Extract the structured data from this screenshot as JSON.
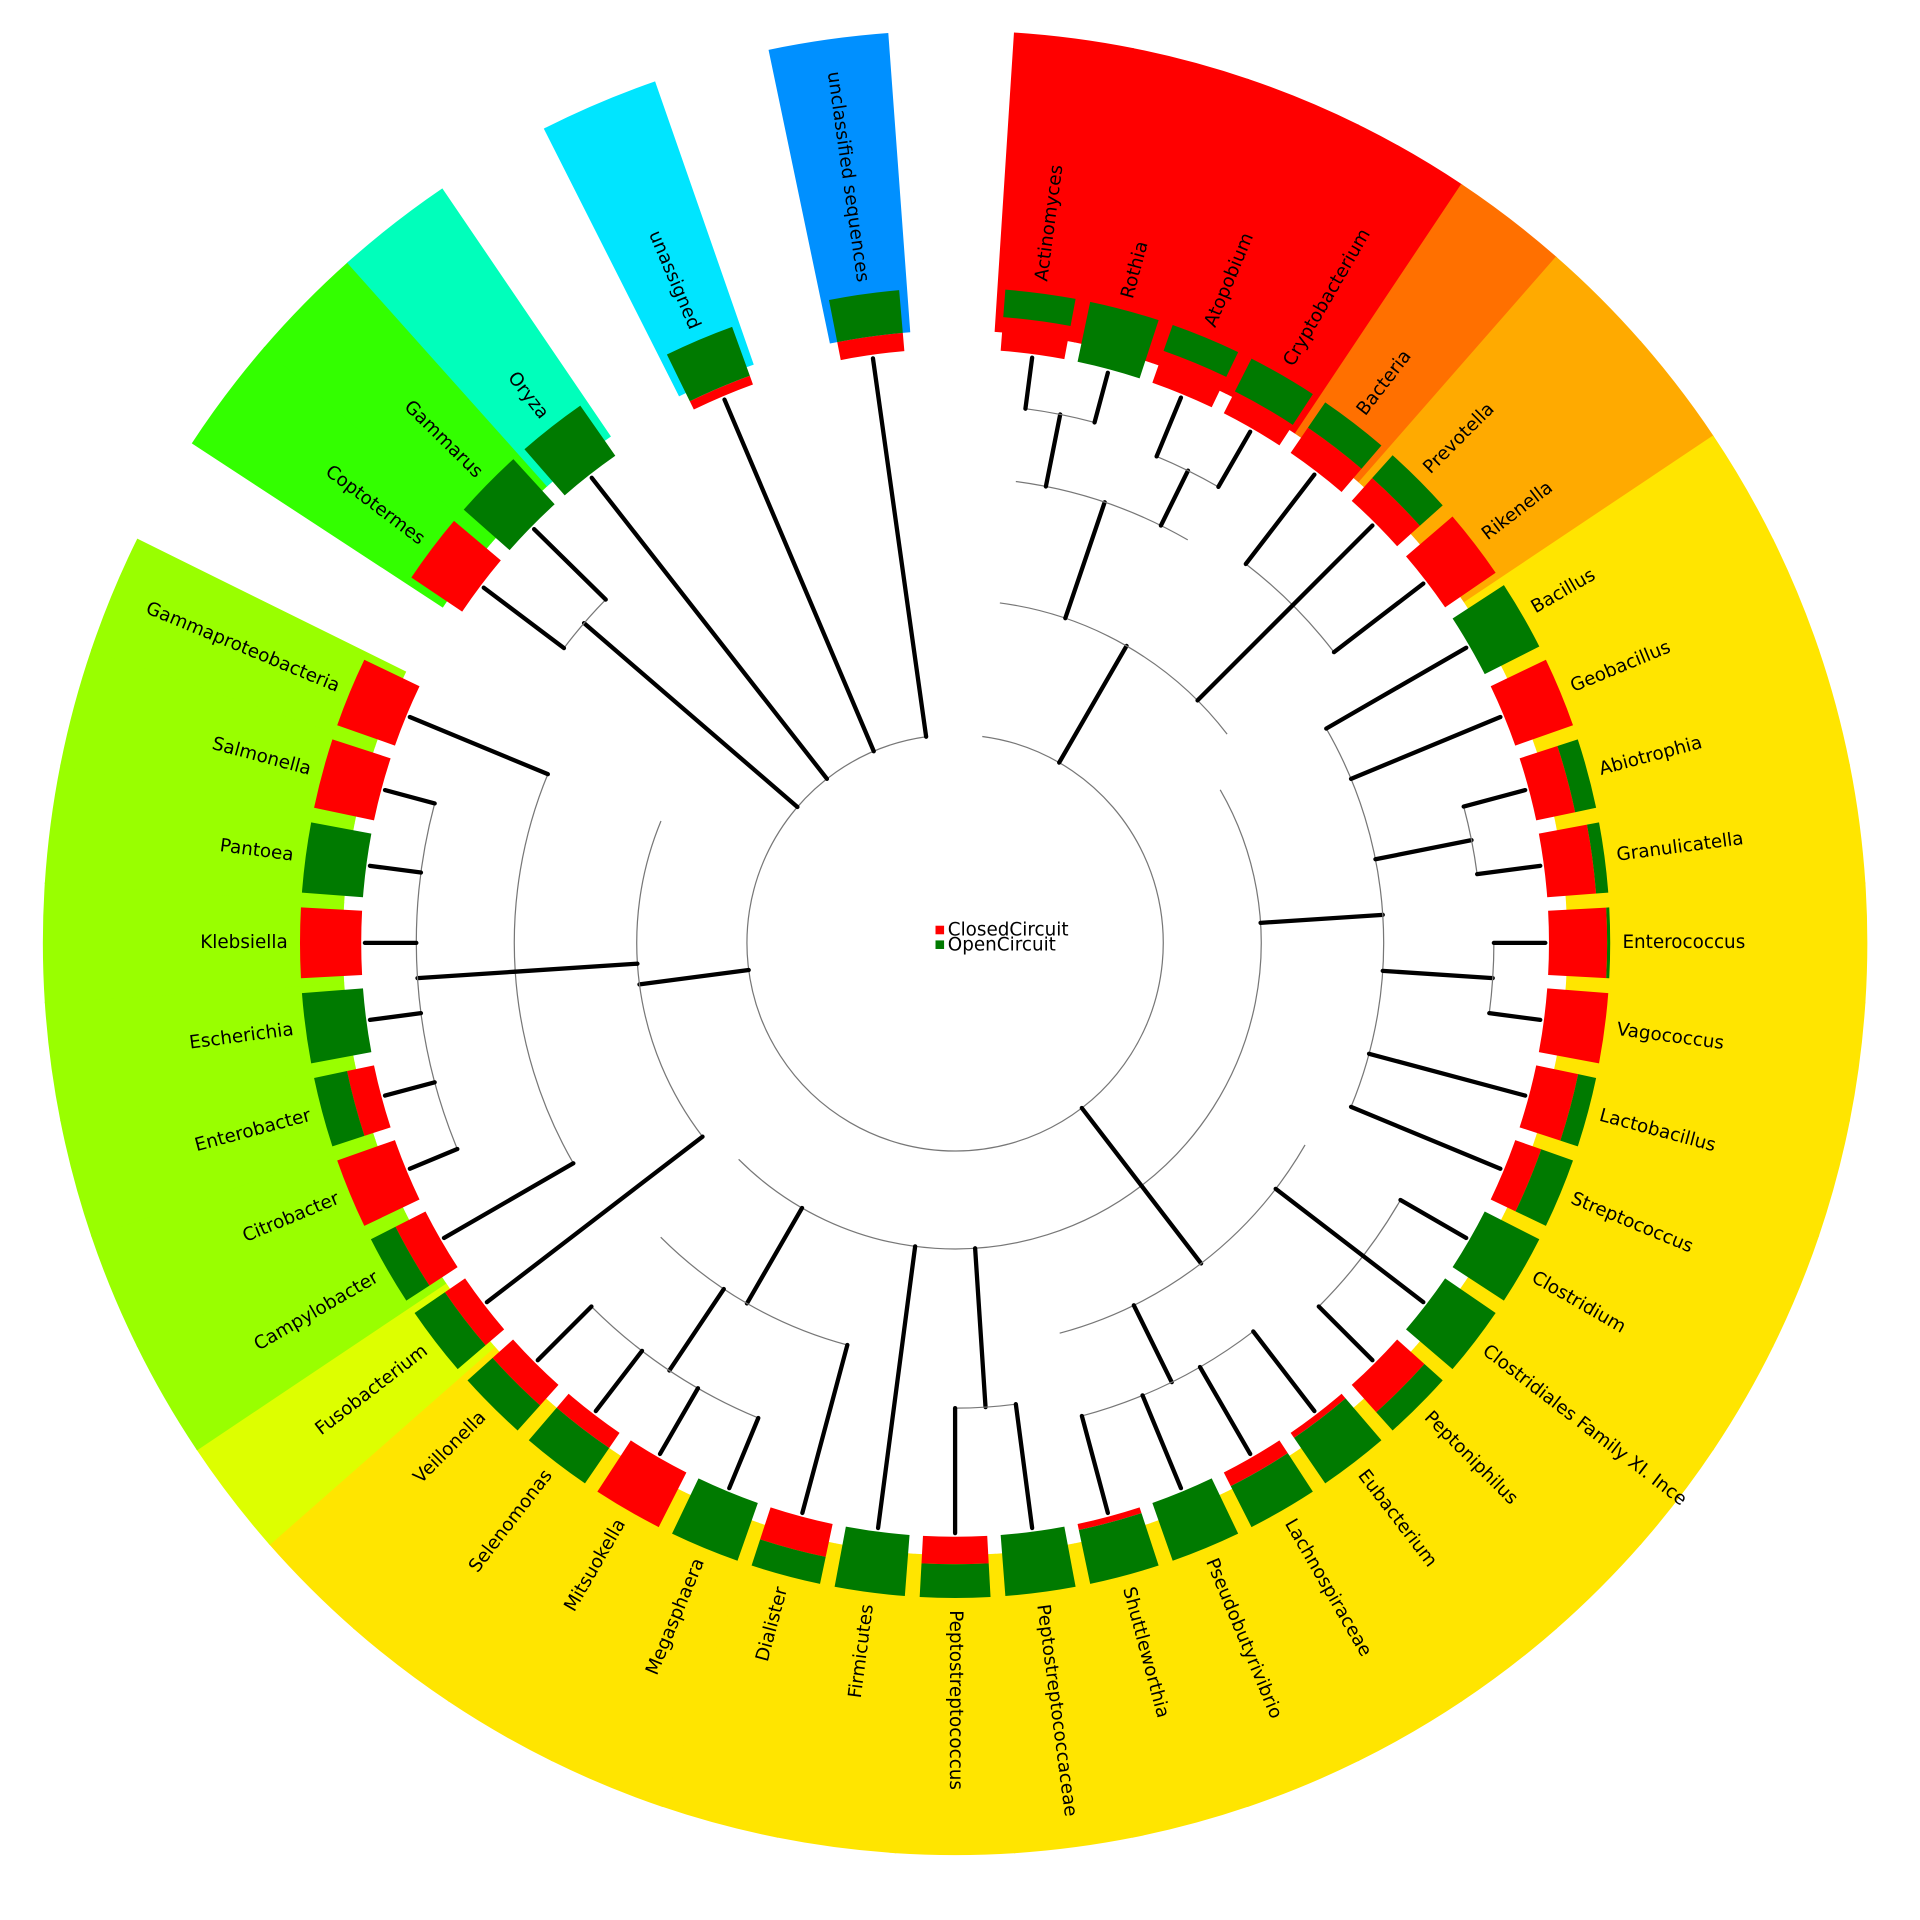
{
  "legend": [
    {
      "name": "ClosedCircuit",
      "color": "#ff0000"
    },
    {
      "name": "OpenCircuit",
      "color": "#007a00"
    }
  ],
  "leaves": [
    {
      "label": "Actinomyces",
      "closed": 55,
      "open": 45,
      "clade_color": "#ff0000"
    },
    {
      "label": "Rothia",
      "closed": 0,
      "open": 100,
      "clade_color": "#ff0000"
    },
    {
      "label": "Atopobium",
      "closed": 55,
      "open": 45,
      "clade_color": "#ff0000"
    },
    {
      "label": "Cryptobacterium",
      "closed": 40,
      "open": 60,
      "clade_color": "#ff0000"
    },
    {
      "label": "Bacteria",
      "closed": 50,
      "open": 50,
      "clade_color": "#ff7000"
    },
    {
      "label": "Prevotella",
      "closed": 50,
      "open": 50,
      "clade_color": "#ffaa00"
    },
    {
      "label": "Rikenella",
      "closed": 100,
      "open": 0,
      "clade_color": "#ffaa00"
    },
    {
      "label": "Bacillus",
      "closed": 0,
      "open": 100,
      "clade_color": "#ffe500"
    },
    {
      "label": "Geobacillus",
      "closed": 100,
      "open": 0,
      "clade_color": "#ffe500"
    },
    {
      "label": "Abiotrophia",
      "closed": 65,
      "open": 35,
      "clade_color": "#ffe500"
    },
    {
      "label": "Granulicatella",
      "closed": 80,
      "open": 20,
      "clade_color": "#ffe500"
    },
    {
      "label": "Enterococcus",
      "closed": 95,
      "open": 5,
      "clade_color": "#ffe500"
    },
    {
      "label": "Vagococcus",
      "closed": 100,
      "open": 0,
      "clade_color": "#ffe500"
    },
    {
      "label": "Lactobacillus",
      "closed": 70,
      "open": 30,
      "clade_color": "#ffe500"
    },
    {
      "label": "Streptococcus",
      "closed": 45,
      "open": 55,
      "clade_color": "#ffe500"
    },
    {
      "label": "Clostridium",
      "closed": 0,
      "open": 100,
      "clade_color": "#ffe500"
    },
    {
      "label": "Clostridiales Family XI. Ince",
      "closed": 0,
      "open": 100,
      "clade_color": "#ffe500"
    },
    {
      "label": "Peptoniphilus",
      "closed": 60,
      "open": 40,
      "clade_color": "#ffe500"
    },
    {
      "label": "Eubacterium",
      "closed": 10,
      "open": 90,
      "clade_color": "#ffe500"
    },
    {
      "label": "Lachnospiraceae",
      "closed": 25,
      "open": 75,
      "clade_color": "#ffe500"
    },
    {
      "label": "Pseudobutyrivibrio",
      "closed": 0,
      "open": 100,
      "clade_color": "#ffe500"
    },
    {
      "label": "Shuttleworthia",
      "closed": 10,
      "open": 90,
      "clade_color": "#ffe500"
    },
    {
      "label": "Peptostreptococcaceae",
      "closed": 0,
      "open": 100,
      "clade_color": "#ffe500"
    },
    {
      "label": "Peptostreptococcus",
      "closed": 45,
      "open": 55,
      "clade_color": "#ffe500"
    },
    {
      "label": "Firmicutes",
      "closed": 0,
      "open": 100,
      "clade_color": "#ffe500"
    },
    {
      "label": "Dialister",
      "closed": 55,
      "open": 45,
      "clade_color": "#ffe500"
    },
    {
      "label": "Megasphaera",
      "closed": 0,
      "open": 100,
      "clade_color": "#ffe500"
    },
    {
      "label": "Mitsuokella",
      "closed": 100,
      "open": 0,
      "clade_color": "#ffe500"
    },
    {
      "label": "Selenomonas",
      "closed": 30,
      "open": 70,
      "clade_color": "#ffe500"
    },
    {
      "label": "Veillonella",
      "closed": 45,
      "open": 55,
      "clade_color": "#ffe500"
    },
    {
      "label": "Fusobacterium",
      "closed": 40,
      "open": 60,
      "clade_color": "#ddff00"
    },
    {
      "label": "Campylobacter",
      "closed": 55,
      "open": 45,
      "clade_color": "#99ff00"
    },
    {
      "label": "Citrobacter",
      "closed": 100,
      "open": 0,
      "clade_color": "#99ff00"
    },
    {
      "label": "Enterobacter",
      "closed": 45,
      "open": 55,
      "clade_color": "#99ff00"
    },
    {
      "label": "Escherichia",
      "closed": 0,
      "open": 100,
      "clade_color": "#99ff00"
    },
    {
      "label": "Klebsiella",
      "closed": 100,
      "open": 0,
      "clade_color": "#99ff00"
    },
    {
      "label": "Pantoea",
      "closed": 0,
      "open": 100,
      "clade_color": "#99ff00"
    },
    {
      "label": "Salmonella",
      "closed": 100,
      "open": 0,
      "clade_color": "#99ff00"
    },
    {
      "label": "Gammaproteobacteria",
      "closed": 100,
      "open": 0,
      "clade_color": "#99ff00"
    },
    {
      "label": "Coptotermes",
      "closed": 100,
      "open": 0,
      "clade_color": "#33ff00"
    },
    {
      "label": "Gammarus",
      "closed": 0,
      "open": 100,
      "clade_color": "#33ff00"
    },
    {
      "label": "Oryza",
      "closed": 0,
      "open": 100,
      "clade_color": "#00ffbb"
    },
    {
      "label": "unassigned",
      "closed": 15,
      "open": 85,
      "clade_color": "#00e5ff"
    },
    {
      "label": "unclassified sequences",
      "closed": 30,
      "open": 70,
      "clade_color": "#0090ff"
    }
  ]
}
